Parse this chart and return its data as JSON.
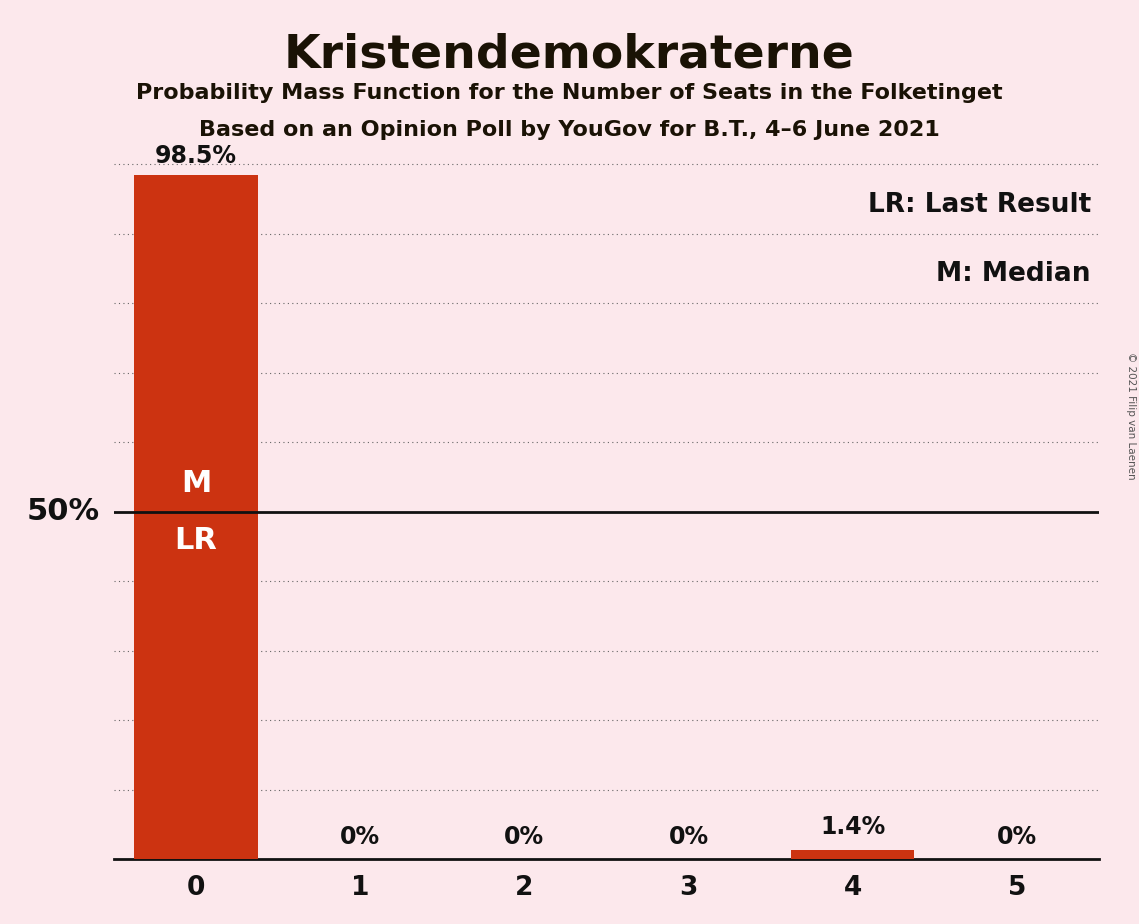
{
  "title": "Kristendemokraterne",
  "subtitle1": "Probability Mass Function for the Number of Seats in the Folketinget",
  "subtitle2": "Based on an Opinion Poll by YouGov for B.T., 4–6 June 2021",
  "copyright": "© 2021 Filip van Laenen",
  "categories": [
    0,
    1,
    2,
    3,
    4,
    5
  ],
  "values": [
    98.5,
    0.0,
    0.0,
    0.0,
    1.4,
    0.0
  ],
  "bar_color": "#cc3311",
  "background_color": "#fce8ec",
  "fifty_pct_line_color": "#111111",
  "grid_color": "#666666",
  "bar_labels": [
    "98.5%",
    "0%",
    "0%",
    "0%",
    "1.4%",
    "0%"
  ],
  "ylim": [
    0,
    103
  ],
  "ytick_positions": [
    10,
    20,
    30,
    40,
    60,
    70,
    80,
    90,
    100
  ],
  "fifty_pct": 50,
  "median_seat": 0,
  "last_result_seat": 0,
  "legend_lr": "LR: Last Result",
  "legend_m": "M: Median",
  "title_fontsize": 34,
  "subtitle_fontsize": 16,
  "bar_label_fontsize": 17,
  "axis_tick_fontsize": 19,
  "legend_fontsize": 19,
  "ml_label_fontsize": 22,
  "fifty_label_fontsize": 22
}
